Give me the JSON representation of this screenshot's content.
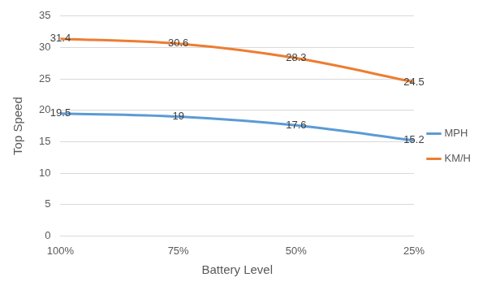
{
  "chart_data": {
    "type": "line",
    "x_label": "Battery Level",
    "y_label": "Top Speed",
    "categories": [
      "100%",
      "75%",
      "50%",
      "25%"
    ],
    "series": [
      {
        "name": "MPH",
        "color": "#5b9bd5",
        "values": [
          19.5,
          19,
          17.6,
          15.2
        ]
      },
      {
        "name": "KM/H",
        "color": "#ed7d31",
        "values": [
          31.4,
          30.6,
          28.3,
          24.5
        ]
      }
    ],
    "ylim": [
      0,
      35
    ],
    "yticks": [
      0,
      5,
      10,
      15,
      20,
      25,
      30,
      35
    ],
    "grid": true,
    "legend": "right",
    "data_labels": true
  }
}
